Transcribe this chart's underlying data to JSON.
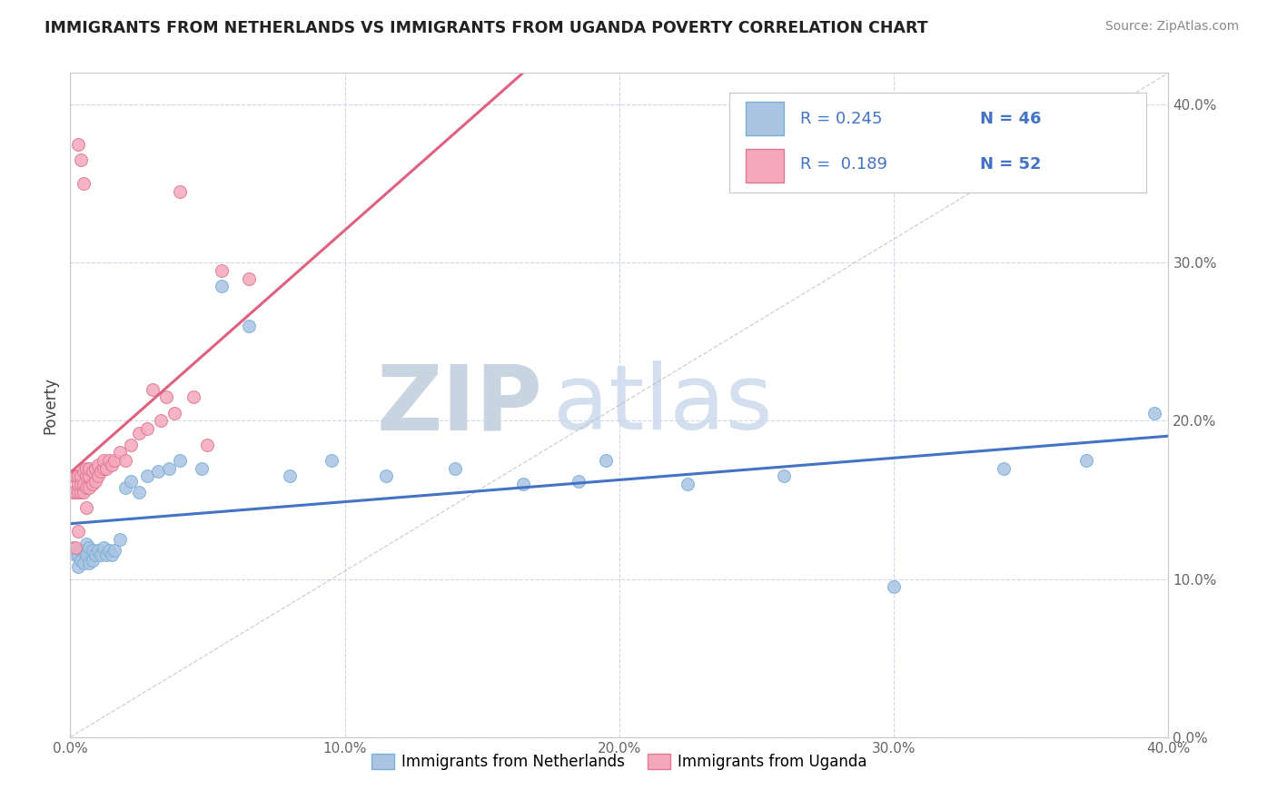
{
  "title": "IMMIGRANTS FROM NETHERLANDS VS IMMIGRANTS FROM UGANDA POVERTY CORRELATION CHART",
  "source": "Source: ZipAtlas.com",
  "ylabel": "Poverty",
  "x_min": 0.0,
  "x_max": 0.4,
  "y_min": 0.0,
  "y_max": 0.42,
  "x_ticks": [
    0.0,
    0.1,
    0.2,
    0.3,
    0.4
  ],
  "y_ticks": [
    0.0,
    0.1,
    0.2,
    0.3,
    0.4
  ],
  "legend_labels": [
    "Immigrants from Netherlands",
    "Immigrants from Uganda"
  ],
  "netherlands_color": "#aac4e2",
  "uganda_color": "#f5a8bc",
  "netherlands_edge": "#7aafd6",
  "uganda_edge": "#e07890",
  "trend_netherlands_color": "#4472c4",
  "trend_uganda_color": "#e06080",
  "r_netherlands": 0.245,
  "n_netherlands": 46,
  "r_uganda": 0.189,
  "n_uganda": 52,
  "background_color": "#ffffff",
  "grid_color": "#c8d4e8",
  "legend_r_color": "#4472c4",
  "netherlands_x": [
    0.001,
    0.002,
    0.003,
    0.003,
    0.004,
    0.004,
    0.005,
    0.005,
    0.006,
    0.006,
    0.007,
    0.007,
    0.008,
    0.008,
    0.009,
    0.01,
    0.011,
    0.012,
    0.013,
    0.014,
    0.015,
    0.016,
    0.018,
    0.02,
    0.022,
    0.025,
    0.028,
    0.032,
    0.036,
    0.04,
    0.048,
    0.055,
    0.065,
    0.08,
    0.095,
    0.115,
    0.14,
    0.165,
    0.195,
    0.225,
    0.26,
    0.3,
    0.34,
    0.37,
    0.395,
    0.185
  ],
  "netherlands_y": [
    0.12,
    0.115,
    0.115,
    0.108,
    0.118,
    0.112,
    0.118,
    0.11,
    0.122,
    0.115,
    0.12,
    0.11,
    0.118,
    0.112,
    0.115,
    0.118,
    0.115,
    0.12,
    0.115,
    0.118,
    0.115,
    0.118,
    0.125,
    0.158,
    0.162,
    0.155,
    0.165,
    0.168,
    0.17,
    0.175,
    0.17,
    0.285,
    0.26,
    0.165,
    0.175,
    0.165,
    0.17,
    0.16,
    0.175,
    0.16,
    0.165,
    0.095,
    0.17,
    0.175,
    0.205,
    0.162
  ],
  "uganda_x": [
    0.001,
    0.001,
    0.002,
    0.002,
    0.003,
    0.003,
    0.003,
    0.004,
    0.004,
    0.004,
    0.005,
    0.005,
    0.005,
    0.006,
    0.006,
    0.006,
    0.007,
    0.007,
    0.007,
    0.008,
    0.008,
    0.009,
    0.009,
    0.01,
    0.01,
    0.011,
    0.012,
    0.012,
    0.013,
    0.014,
    0.015,
    0.016,
    0.018,
    0.02,
    0.022,
    0.025,
    0.028,
    0.033,
    0.038,
    0.045,
    0.055,
    0.065,
    0.03,
    0.035,
    0.04,
    0.05,
    0.003,
    0.004,
    0.005,
    0.006,
    0.002,
    0.003
  ],
  "uganda_y": [
    0.155,
    0.165,
    0.155,
    0.165,
    0.155,
    0.16,
    0.165,
    0.155,
    0.16,
    0.165,
    0.155,
    0.16,
    0.168,
    0.158,
    0.165,
    0.17,
    0.158,
    0.165,
    0.17,
    0.16,
    0.168,
    0.162,
    0.17,
    0.165,
    0.172,
    0.168,
    0.17,
    0.175,
    0.17,
    0.175,
    0.172,
    0.175,
    0.18,
    0.175,
    0.185,
    0.192,
    0.195,
    0.2,
    0.205,
    0.215,
    0.295,
    0.29,
    0.22,
    0.215,
    0.345,
    0.185,
    0.375,
    0.365,
    0.35,
    0.145,
    0.12,
    0.13
  ]
}
